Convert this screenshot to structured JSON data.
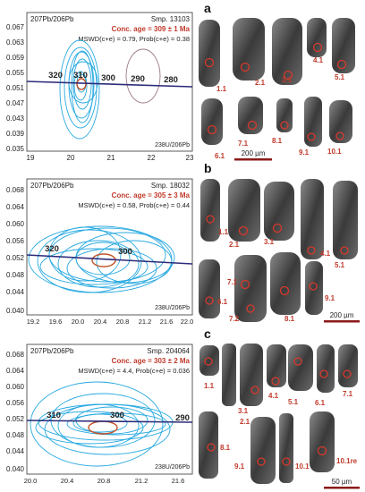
{
  "colors": {
    "ellipse_blue": "#29a9e0",
    "concordia_navy": "#2b2b7a",
    "mean_ellipse_red": "#c0542a",
    "age_text_red": "#c0392b",
    "grain_circle_red": "#d9382c",
    "grain_label_red": "#c0392b",
    "gray_ellipse": "#9a7a8a"
  },
  "panels": [
    {
      "letter": "a",
      "y_axis_label": "207Pb/206Pb",
      "x_axis_label": "238U/206Pb",
      "sample": "Smp. 13103",
      "age": "Conc. age = 309 ± 1 Ma",
      "stats": "MSWD(c+e) = 0.79, Prob(c+e) = 0.38",
      "x_ticks": [
        "19",
        "20",
        "21",
        "22",
        "23"
      ],
      "y_ticks": [
        "0.067",
        "0.063",
        "0.059",
        "0.055",
        "0.051",
        "0.047",
        "0.043",
        "0.039",
        "0.035"
      ],
      "concordia_ages": [
        "320",
        "310",
        "300",
        "290",
        "280"
      ],
      "grain_labels": [
        "1.1",
        "2.1",
        "3.1",
        "4.1",
        "5.1",
        "6.1",
        "7.1",
        "8.1",
        "9.1",
        "10.1"
      ],
      "scale_bar": "200 µm"
    },
    {
      "letter": "b",
      "y_axis_label": "207Pb/206Pb",
      "x_axis_label": "238U/206Pb",
      "sample": "Smp. 18032",
      "age": "Conc. age = 305 ± 3 Ma",
      "stats": "MSWD(c+e) = 0.58, Prob(c+e) = 0.44",
      "x_ticks": [
        "19.2",
        "19.6",
        "20.0",
        "20.4",
        "20.8",
        "21.2",
        "21.6",
        "22.0"
      ],
      "y_ticks": [
        "0.068",
        "0.064",
        "0.060",
        "0.056",
        "0.052",
        "0.048",
        "0.044",
        "0.040"
      ],
      "concordia_ages": [
        "320",
        "300"
      ],
      "grain_labels": [
        "1.1",
        "2.1",
        "3.1",
        "4.1",
        "5.1",
        "6.1",
        "7.1",
        "7.2",
        "8.1",
        "9.1"
      ],
      "scale_bar": "200 µm"
    },
    {
      "letter": "c",
      "y_axis_label": "207Pb/206Pb",
      "x_axis_label": "238U/206Pb",
      "sample": "Smp. 204064",
      "age": "Conc. age = 303 ± 2 Ma",
      "stats": "MSWD(c+e) = 4.4, Prob(c+e) = 0.036",
      "x_ticks": [
        "20.0",
        "20.4",
        "20.8",
        "21.2",
        "21.6"
      ],
      "y_ticks": [
        "0.068",
        "0.064",
        "0.060",
        "0.056",
        "0.052",
        "0.048",
        "0.044",
        "0.040"
      ],
      "concordia_ages": [
        "310",
        "300",
        "290"
      ],
      "grain_labels": [
        "1.1",
        "2.1",
        "3.1",
        "4.1",
        "5.1",
        "6.1",
        "7.1",
        "8.1",
        "9.1",
        "10.1",
        "10.1re"
      ],
      "scale_bar": "50 µm"
    }
  ]
}
